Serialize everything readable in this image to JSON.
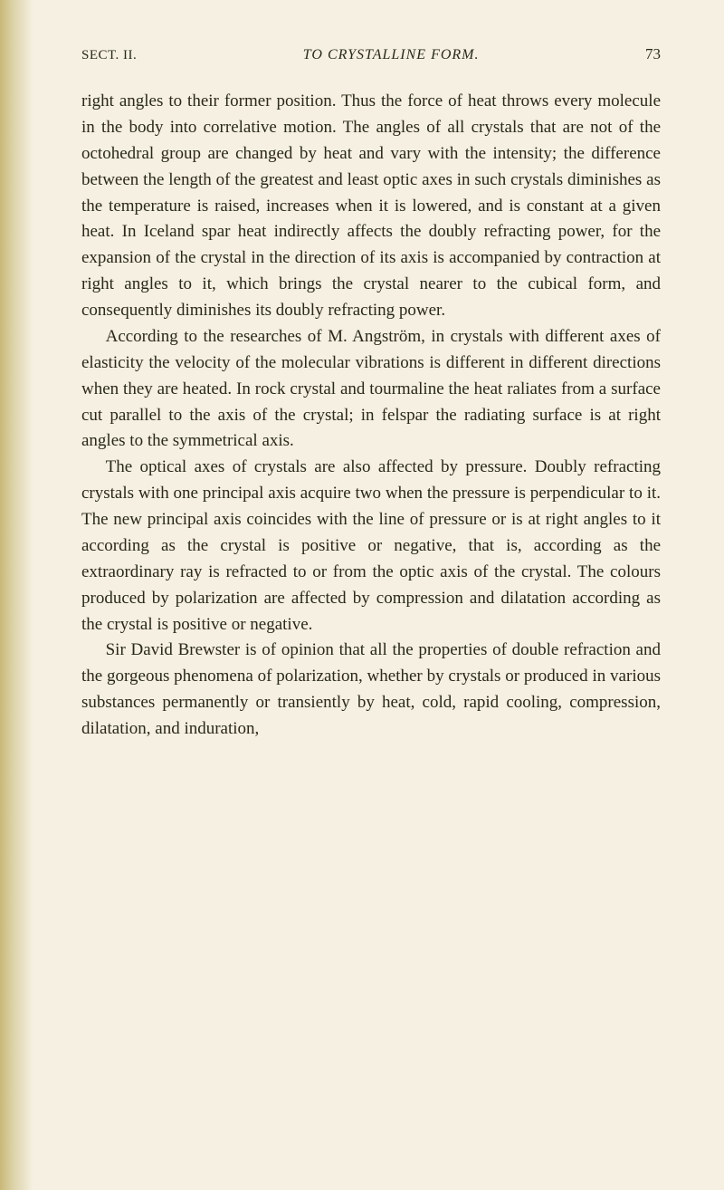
{
  "header": {
    "section": "SECT. II.",
    "title": "TO CRYSTALLINE FORM.",
    "page": "73"
  },
  "paragraphs": {
    "p1": "right angles to their former position. Thus the force of heat throws every molecule in the body into correlative motion. The angles of all crystals that are not of the octohedral group are changed by heat and vary with the intensity; the difference between the length of the greatest and least optic axes in such crystals diminishes as the temperature is raised, increases when it is lowered, and is constant at a given heat. In Iceland spar heat indirectly affects the doubly refracting power, for the expansion of the crystal in the direction of its axis is accompanied by contraction at right angles to it, which brings the crystal nearer to the cubical form, and consequently diminishes its doubly refracting power.",
    "p2": "According to the researches of M. Angström, in crystals with different axes of elasticity the velocity of the molecular vibrations is different in different directions when they are heated. In rock crystal and tourmaline the heat raliates from a surface cut parallel to the axis of the crystal; in felspar the radiating surface is at right angles to the symmetrical axis.",
    "p3": "The optical axes of crystals are also affected by pressure. Doubly refracting crystals with one principal axis acquire two when the pressure is perpendicular to it. The new principal axis coincides with the line of pressure or is at right angles to it according as the crystal is positive or negative, that is, according as the extraordinary ray is refracted to or from the optic axis of the crystal. The colours produced by polarization are affected by compression and dilatation according as the crystal is positive or negative.",
    "p4": "Sir David Brewster is of opinion that all the properties of double refraction and the gorgeous phenomena of polarization, whether by crystals or produced in various substances permanently or transiently by heat, cold, rapid cooling, compression, dilatation, and induration,"
  },
  "colors": {
    "background": "#f5f0e1",
    "text": "#2a2818",
    "edge_dark": "#c9b878"
  },
  "typography": {
    "body_fontsize": 19,
    "header_fontsize": 15,
    "line_height": 1.52,
    "font_family": "Georgia"
  }
}
